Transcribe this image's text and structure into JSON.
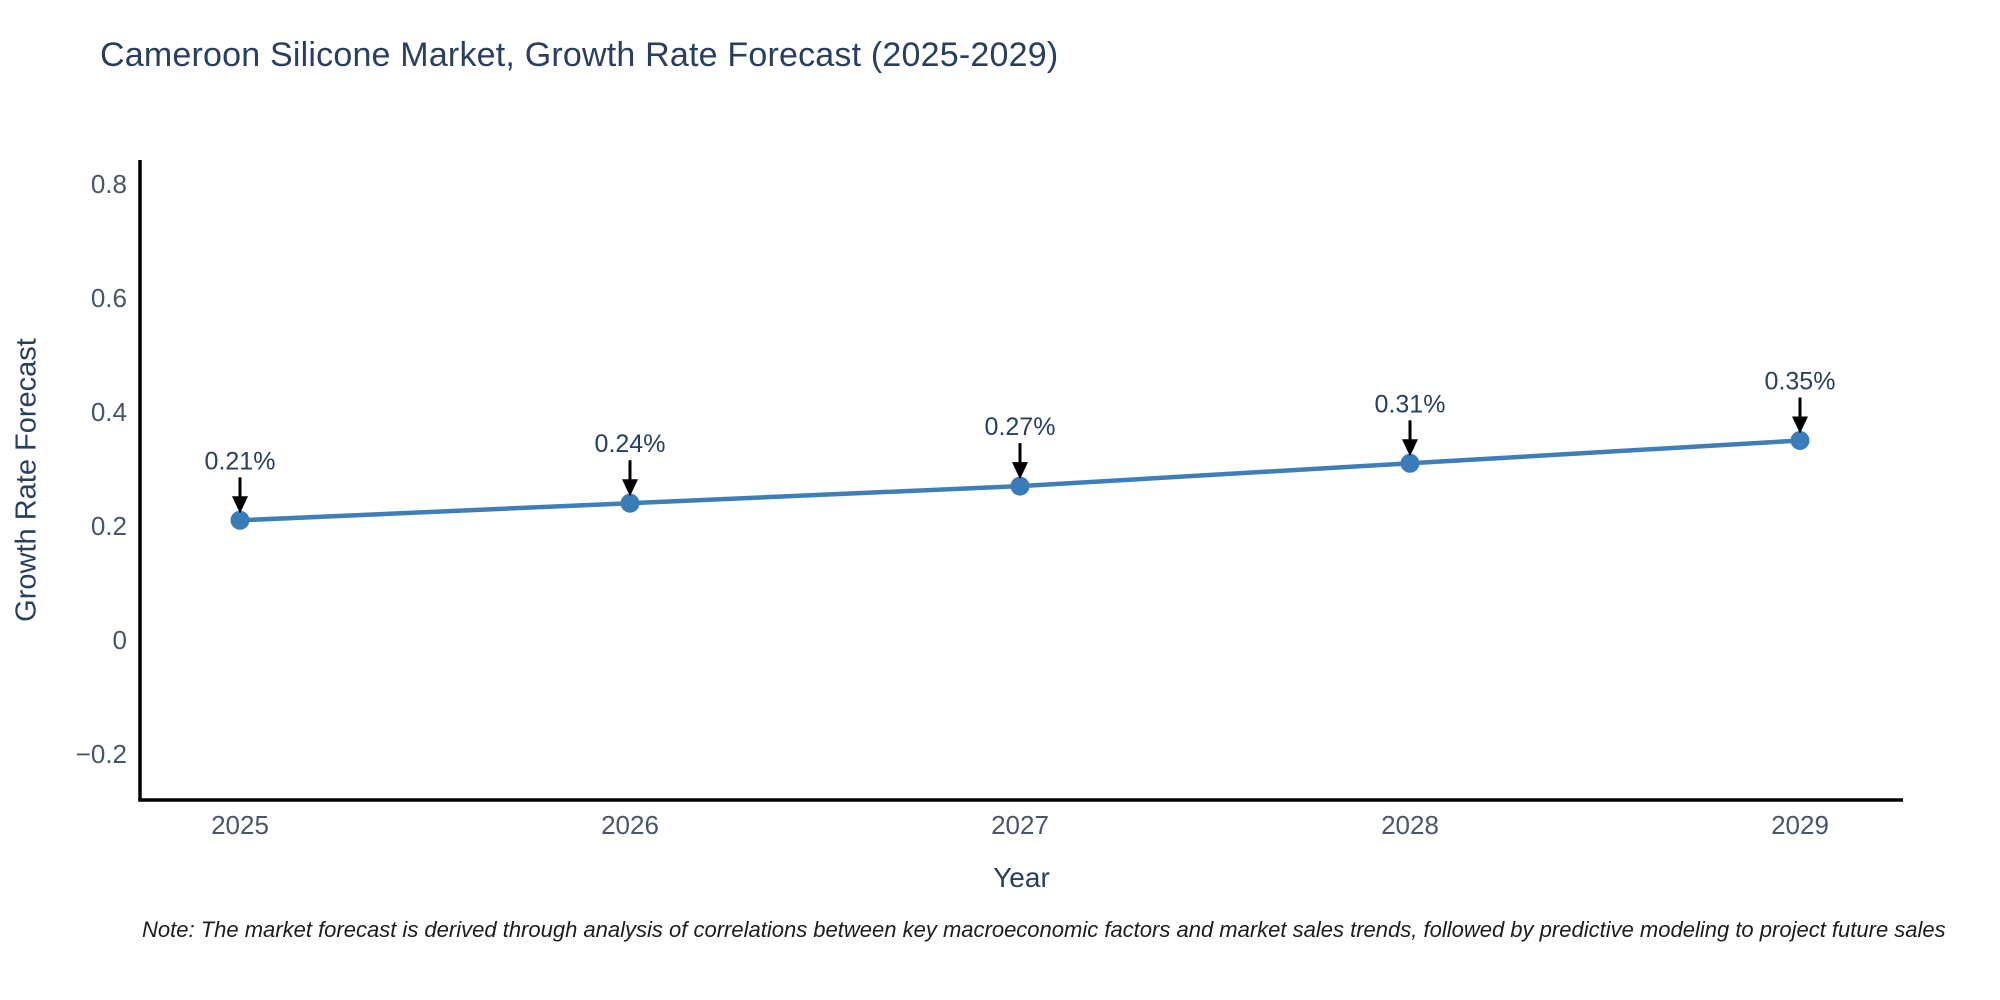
{
  "title": "Cameroon Silicone Market, Growth Rate Forecast (2025-2029)",
  "note": "Note: The market forecast is derived through analysis of correlations between key macroeconomic factors and market sales trends, followed by predictive modeling to project future sales",
  "colors": {
    "line": "#3f7fb9",
    "marker": "#3a7cb8",
    "axis_line": "#000000",
    "tick_text": "#4a5568",
    "annotation_text": "#2a3f5f",
    "annotation_arrow": "#000000",
    "title_text": "#2a3f5f",
    "background": "#ffffff"
  },
  "chart_data": {
    "type": "line",
    "title": "Cameroon Silicone Market, Growth Rate Forecast (2025-2029)",
    "xlabel": "Year",
    "ylabel": "Growth Rate Forecast",
    "x": [
      2025,
      2026,
      2027,
      2028,
      2029
    ],
    "x_tick_labels": [
      "2025",
      "2026",
      "2027",
      "2028",
      "2029"
    ],
    "series": [
      {
        "name": "Growth Rate Forecast",
        "values": [
          0.21,
          0.24,
          0.27,
          0.31,
          0.35
        ]
      }
    ],
    "point_labels": [
      "0.21%",
      "0.24%",
      "0.27%",
      "0.31%",
      "0.35%"
    ],
    "y_ticks": [
      {
        "value": 0.8,
        "label": "0.8"
      },
      {
        "value": 0.6,
        "label": "0.6"
      },
      {
        "value": 0.4,
        "label": "0.4"
      },
      {
        "value": 0.2,
        "label": "0.2"
      },
      {
        "value": 0.0,
        "label": "0"
      },
      {
        "value": -0.2,
        "label": "−0.2"
      }
    ],
    "ylim": [
      -0.28,
      0.84
    ],
    "grid": false,
    "legend": "none",
    "markers": true,
    "annotations": "value labels with black arrows pointing down to each data point"
  }
}
